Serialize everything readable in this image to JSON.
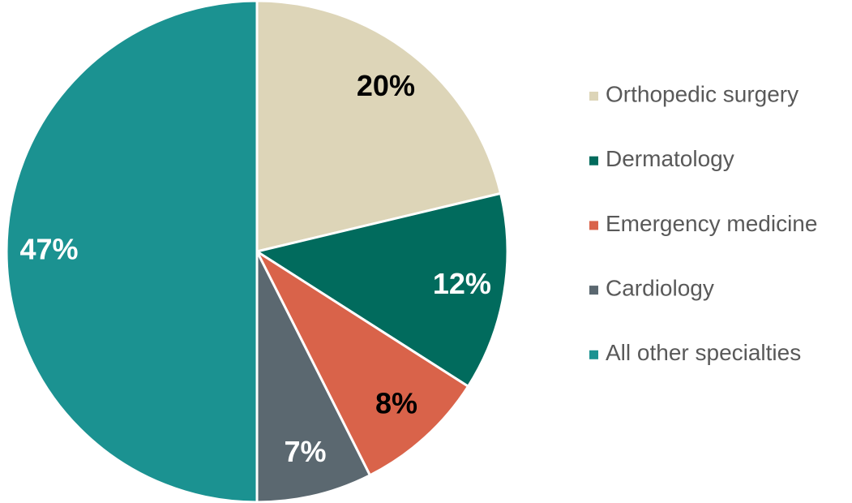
{
  "chart_data": {
    "type": "pie",
    "categories": [
      "Orthopedic surgery",
      "Dermatology",
      "Emergency medicine",
      "Cardiology",
      "All other specialties"
    ],
    "values": [
      20,
      12,
      8,
      7,
      47
    ],
    "value_labels": [
      "20%",
      "12%",
      "8%",
      "7%",
      "47%"
    ],
    "colors": [
      "#ddd5b8",
      "#016b5d",
      "#d9634a",
      "#5b6870",
      "#1b9291"
    ],
    "label_colors": [
      "#000000",
      "#ffffff",
      "#000000",
      "#ffffff",
      "#ffffff"
    ],
    "legend": "right"
  }
}
